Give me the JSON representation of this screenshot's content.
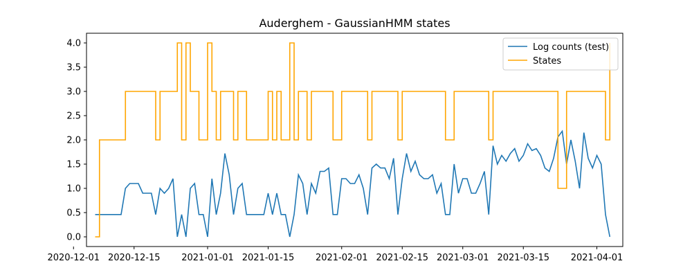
{
  "chart_data": {
    "type": "line",
    "title": "Auderghem - GaussianHMM states",
    "xlabel": "",
    "ylabel": "",
    "x_start": "2020-12-06",
    "x_step_days": 1,
    "xlim": [
      "2020-12-04",
      "2021-04-07"
    ],
    "ylim": [
      -0.2,
      4.2
    ],
    "x_ticks": [
      {
        "label": "2020-12-01",
        "date": "2020-12-01"
      },
      {
        "label": "2020-12-15",
        "date": "2020-12-15"
      },
      {
        "label": "2021-01-01",
        "date": "2021-01-01"
      },
      {
        "label": "2021-01-15",
        "date": "2021-01-15"
      },
      {
        "label": "2021-02-01",
        "date": "2021-02-01"
      },
      {
        "label": "2021-02-15",
        "date": "2021-02-15"
      },
      {
        "label": "2021-03-01",
        "date": "2021-03-01"
      },
      {
        "label": "2021-03-15",
        "date": "2021-03-15"
      },
      {
        "label": "2021-04-01",
        "date": "2021-04-01"
      }
    ],
    "y_ticks": [
      {
        "label": "0.0",
        "value": 0.0
      },
      {
        "label": "0.5",
        "value": 0.5
      },
      {
        "label": "1.0",
        "value": 1.0
      },
      {
        "label": "1.5",
        "value": 1.5
      },
      {
        "label": "2.0",
        "value": 2.0
      },
      {
        "label": "2.5",
        "value": 2.5
      },
      {
        "label": "3.0",
        "value": 3.0
      },
      {
        "label": "3.5",
        "value": 3.5
      },
      {
        "label": "4.0",
        "value": 4.0
      }
    ],
    "grid": false,
    "legend_position": "top-right",
    "series": [
      {
        "name": "Log counts (test)",
        "style": "line",
        "color": "#1f77b4",
        "values": [
          0.46,
          0.46,
          0.46,
          0.46,
          0.46,
          0.46,
          0.46,
          1.0,
          1.1,
          1.1,
          1.1,
          0.9,
          0.9,
          0.9,
          0.46,
          1.0,
          0.9,
          1.0,
          1.2,
          0.0,
          0.46,
          0.0,
          1.0,
          1.1,
          0.46,
          0.46,
          0.0,
          1.2,
          0.46,
          0.9,
          1.72,
          1.28,
          0.46,
          1.0,
          1.1,
          0.46,
          0.46,
          0.46,
          0.46,
          0.46,
          0.9,
          0.46,
          0.9,
          0.46,
          0.46,
          0.0,
          0.46,
          1.28,
          1.1,
          0.46,
          1.1,
          0.9,
          1.35,
          1.35,
          1.42,
          0.46,
          0.46,
          1.2,
          1.2,
          1.1,
          1.1,
          1.28,
          1.0,
          0.46,
          1.42,
          1.5,
          1.42,
          1.42,
          1.2,
          1.62,
          0.46,
          1.2,
          1.72,
          1.35,
          1.56,
          1.28,
          1.2,
          1.2,
          1.28,
          0.9,
          1.1,
          0.46,
          0.46,
          1.5,
          0.9,
          1.2,
          1.2,
          0.9,
          0.9,
          1.1,
          1.35,
          0.46,
          1.88,
          1.5,
          1.68,
          1.56,
          1.72,
          1.82,
          1.56,
          1.68,
          1.92,
          1.78,
          1.82,
          1.68,
          1.42,
          1.35,
          1.62,
          2.06,
          2.18,
          1.5,
          2.0,
          1.56,
          1.0,
          2.15,
          1.62,
          1.42,
          1.68,
          1.5,
          0.46,
          0.0
        ]
      },
      {
        "name": "States",
        "style": "step",
        "color": "#ffa500",
        "values": [
          0,
          2,
          2,
          2,
          2,
          2,
          2,
          3,
          3,
          3,
          3,
          3,
          3,
          3,
          2,
          3,
          3,
          3,
          3,
          4,
          2,
          4,
          3,
          3,
          2,
          2,
          4,
          3,
          2,
          3,
          3,
          3,
          2,
          3,
          3,
          2,
          2,
          2,
          2,
          2,
          3,
          2,
          3,
          2,
          2,
          4,
          2,
          3,
          3,
          2,
          3,
          3,
          3,
          3,
          3,
          2,
          2,
          3,
          3,
          3,
          3,
          3,
          3,
          2,
          3,
          3,
          3,
          3,
          3,
          3,
          2,
          3,
          3,
          3,
          3,
          3,
          3,
          3,
          3,
          3,
          3,
          2,
          2,
          3,
          3,
          3,
          3,
          3,
          3,
          3,
          3,
          2,
          3,
          3,
          3,
          3,
          3,
          3,
          3,
          3,
          3,
          3,
          3,
          3,
          3,
          3,
          3,
          1,
          1,
          3,
          3,
          3,
          3,
          3,
          3,
          3,
          3,
          3,
          2,
          4
        ]
      }
    ]
  }
}
